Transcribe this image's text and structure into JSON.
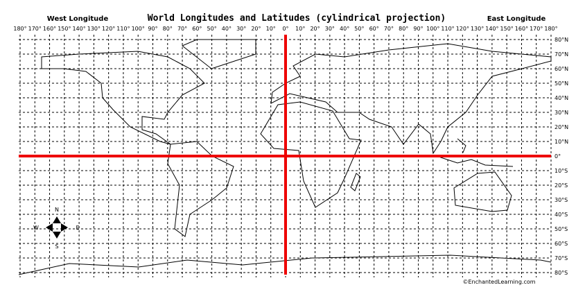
{
  "title": "World Longitudes and Latitudes (cylindrical projection)",
  "west_label": "West Longitude",
  "east_label": "East Longitude",
  "longitude_labels": [
    "180°",
    "170°",
    "160°",
    "150°",
    "140°",
    "130°",
    "120°",
    "110°",
    "100°",
    "90°",
    "80°",
    "70°",
    "60°",
    "50°",
    "40°",
    "30°",
    "20°",
    "10°",
    "0°",
    "10°",
    "20°",
    "30°",
    "40°",
    "50°",
    "60°",
    "70°",
    "80°",
    "90°",
    "100°",
    "110°",
    "120°",
    "130°",
    "140°",
    "150°",
    "160°",
    "170°",
    "180°"
  ],
  "latitude_labels": [
    "80°N",
    "70°N",
    "60°N",
    "50°N",
    "40°N",
    "30°N",
    "20°N",
    "10°N",
    "0°",
    "10°S",
    "20°S",
    "30°S",
    "40°S",
    "50°S",
    "60°S",
    "70°S",
    "80°S"
  ],
  "compass": {
    "north": "N",
    "south": "S",
    "east": "E",
    "west": "W"
  },
  "credit": "©EnchantedLearning.com"
}
